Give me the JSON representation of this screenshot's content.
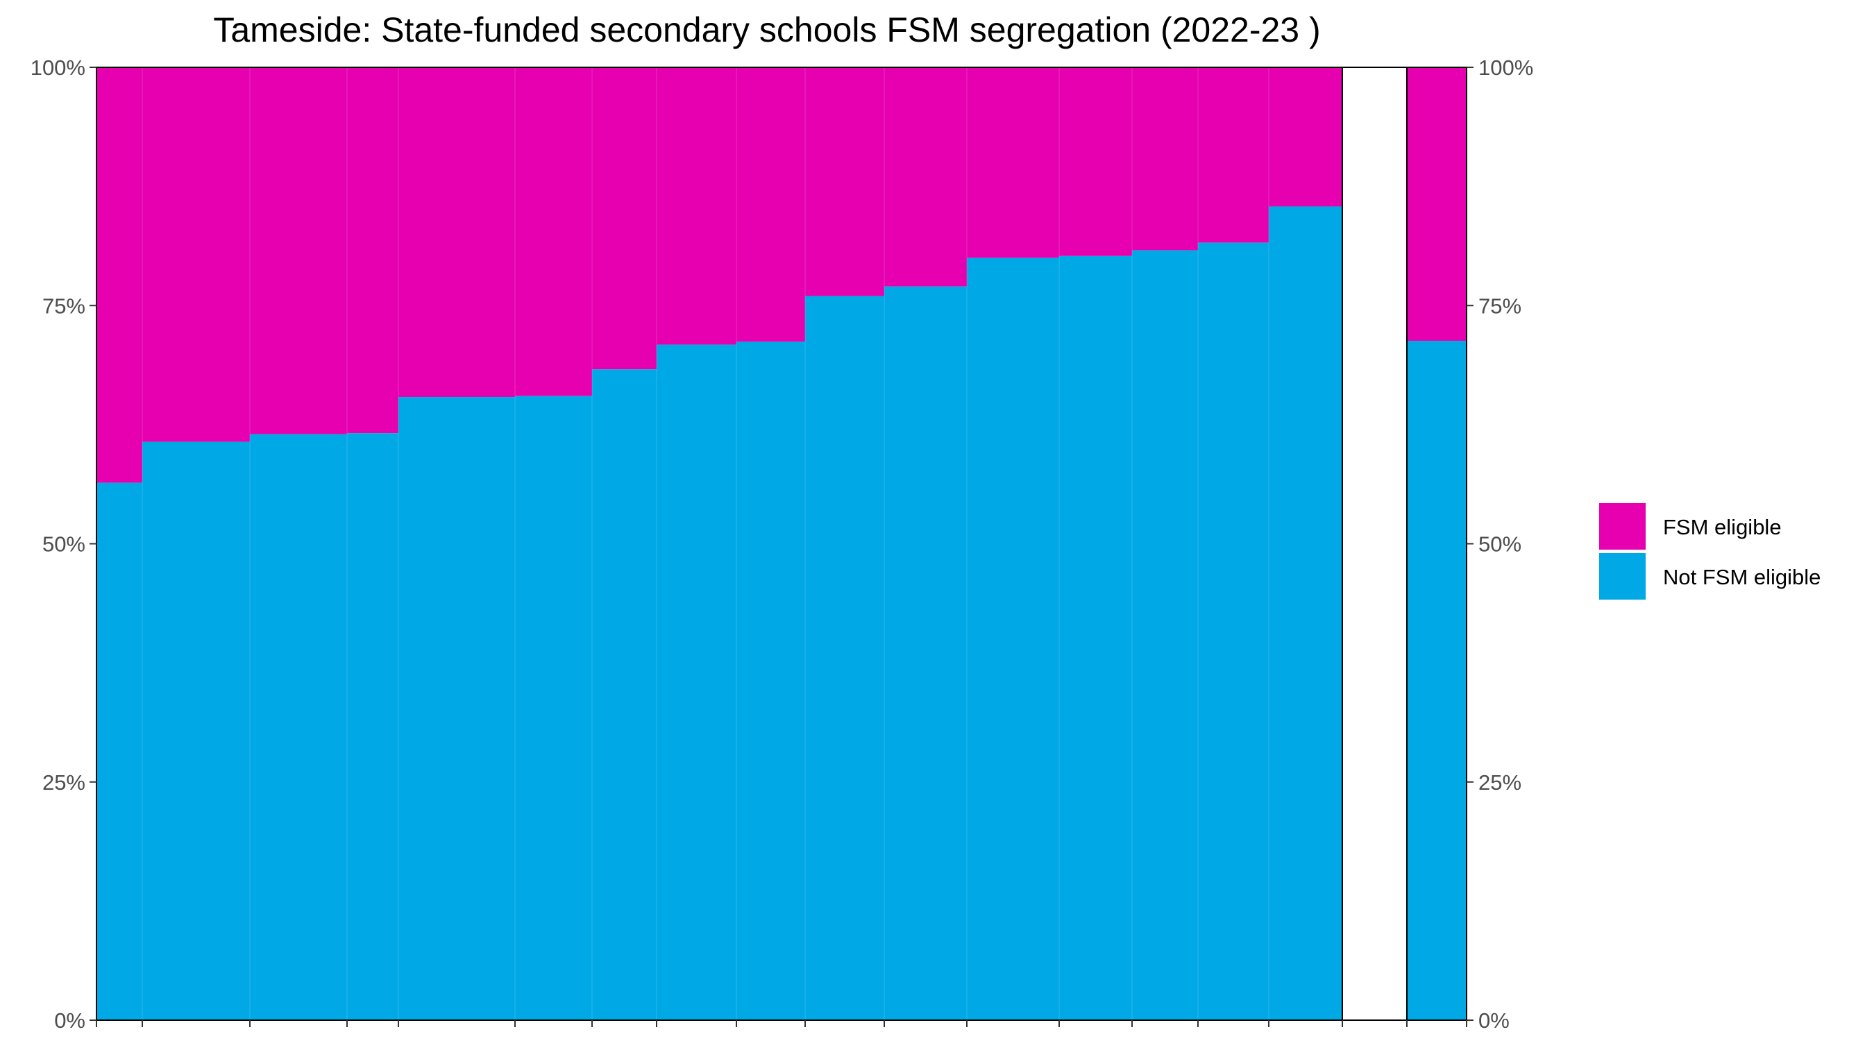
{
  "chart_data": {
    "type": "bar",
    "title": "Tameside: State-funded secondary schools FSM segregation (2022-23 )",
    "xlabel": "",
    "ylabel": "",
    "ylim": [
      0,
      1
    ],
    "y_ticks": [
      0,
      0.25,
      0.5,
      0.75,
      1
    ],
    "y_tick_labels": [
      "0%",
      "25%",
      "50%",
      "75%",
      "100%"
    ],
    "bar_style": "stacked variable-width (mosaic) bars, one column per school, sorted by share not FSM eligible, followed by a gap and an overall column",
    "series": [
      {
        "name": "FSM eligible",
        "color": "#E600B0",
        "values": [
          0.436,
          0.393,
          0.385,
          0.384,
          0.346,
          0.345,
          0.317,
          0.291,
          0.288,
          0.24,
          0.23,
          0.2,
          0.198,
          0.192,
          0.184,
          0.146
        ]
      },
      {
        "name": "Not FSM eligible",
        "color": "#00A8E6",
        "values": [
          0.564,
          0.607,
          0.615,
          0.616,
          0.654,
          0.655,
          0.683,
          0.709,
          0.712,
          0.76,
          0.77,
          0.8,
          0.802,
          0.808,
          0.816,
          0.854
        ]
      }
    ],
    "relative_widths": [
      66,
      155,
      140,
      74,
      168,
      111,
      93,
      115,
      99,
      114,
      119,
      133,
      105,
      95,
      102,
      106
    ],
    "overall": {
      "fsm_eligible": 0.287,
      "not_fsm_eligible": 0.713
    },
    "legend": {
      "position": "right",
      "entries": [
        {
          "label": "FSM eligible",
          "color": "#E600B0"
        },
        {
          "label": "Not FSM eligible",
          "color": "#00A8E6"
        }
      ]
    },
    "grid": false
  }
}
